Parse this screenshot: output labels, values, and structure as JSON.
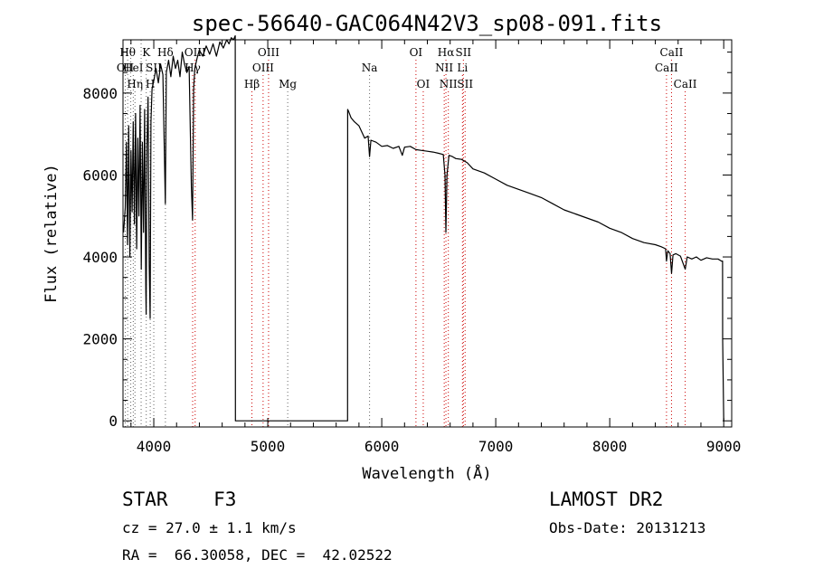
{
  "chart_data": {
    "type": "line",
    "title": "spec-56640-GAC064N42V3_sp08-091.fits",
    "xlabel": "Wavelength (Å)",
    "ylabel": "Flux (relative)",
    "xlim": [
      3730,
      9070
    ],
    "ylim": [
      -150,
      9300
    ],
    "xticks": [
      4000,
      5000,
      6000,
      7000,
      8000,
      9000
    ],
    "yticks": [
      0,
      2000,
      4000,
      6000,
      8000
    ],
    "grid": false,
    "series": [
      {
        "color": "#000000",
        "x": [
          3735,
          3750,
          3760,
          3770,
          3780,
          3790,
          3800,
          3810,
          3820,
          3830,
          3840,
          3850,
          3860,
          3870,
          3880,
          3890,
          3900,
          3910,
          3920,
          3930,
          3933,
          3940,
          3950,
          3960,
          3968,
          3975,
          3985,
          4000,
          4020,
          4040,
          4060,
          4080,
          4101,
          4110,
          4130,
          4150,
          4170,
          4190,
          4210,
          4230,
          4250,
          4270,
          4290,
          4310,
          4330,
          4340,
          4350,
          4360,
          4380,
          4400,
          4430,
          4460,
          4490,
          4520,
          4550,
          4580,
          4610,
          4640,
          4660,
          4680,
          4700,
          4715,
          4716,
          4720,
          5700,
          5701,
          5710,
          5730,
          5760,
          5800,
          5850,
          5880,
          5893,
          5905,
          5950,
          6000,
          6050,
          6100,
          6150,
          6180,
          6200,
          6250,
          6300,
          6350,
          6400,
          6450,
          6500,
          6540,
          6555,
          6563,
          6572,
          6590,
          6620,
          6650,
          6700,
          6750,
          6800,
          6900,
          7000,
          7100,
          7200,
          7300,
          7400,
          7500,
          7600,
          7700,
          7800,
          7900,
          8000,
          8100,
          8200,
          8300,
          8400,
          8450,
          8490,
          8498,
          8510,
          8530,
          8542,
          8555,
          8580,
          8620,
          8662,
          8680,
          8720,
          8760,
          8800,
          8850,
          8900,
          8950,
          8980,
          8990,
          8991,
          9000
        ],
        "y": [
          4600,
          5200,
          6800,
          4300,
          7200,
          4000,
          6600,
          5100,
          7300,
          4800,
          7500,
          4200,
          6900,
          5000,
          7700,
          3700,
          6800,
          4600,
          7600,
          3200,
          2600,
          6700,
          7900,
          3800,
          2500,
          7300,
          8100,
          8300,
          8600,
          8250,
          8700,
          8450,
          5300,
          8500,
          8800,
          8400,
          8900,
          8600,
          8800,
          8400,
          9000,
          8700,
          8500,
          8650,
          5700,
          4900,
          8100,
          8600,
          8850,
          9050,
          8900,
          9150,
          8950,
          9200,
          8900,
          9250,
          9100,
          9300,
          9200,
          9350,
          9300,
          9400,
          0,
          0,
          0,
          7600,
          7550,
          7400,
          7300,
          7200,
          6900,
          6950,
          6450,
          6850,
          6800,
          6700,
          6720,
          6650,
          6700,
          6480,
          6680,
          6700,
          6620,
          6600,
          6580,
          6560,
          6530,
          6500,
          6000,
          4600,
          6000,
          6480,
          6450,
          6400,
          6380,
          6300,
          6150,
          6050,
          5900,
          5750,
          5650,
          5550,
          5450,
          5300,
          5150,
          5050,
          4950,
          4850,
          4700,
          4600,
          4450,
          4350,
          4300,
          4250,
          4200,
          3900,
          4150,
          4080,
          3600,
          4050,
          4080,
          4020,
          3700,
          4000,
          3950,
          4000,
          3920,
          3980,
          3950,
          3950,
          3900,
          3900,
          2000,
          0
        ]
      }
    ],
    "lines": [
      {
        "w": 3750,
        "label": "OII",
        "row": 1,
        "color": "#666666"
      },
      {
        "w": 3771,
        "label": "Hθ",
        "row": 0,
        "color": "#666666"
      },
      {
        "w": 3798,
        "label": "",
        "row": 0,
        "color": "#666666"
      },
      {
        "w": 3820,
        "label": "HeI",
        "row": 1,
        "color": "#666666"
      },
      {
        "w": 3835,
        "label": "Hη",
        "row": 2,
        "color": "#666666"
      },
      {
        "w": 3889,
        "label": "",
        "row": 0,
        "color": "#666666"
      },
      {
        "w": 3934,
        "label": "K",
        "row": 0,
        "color": "#666666"
      },
      {
        "w": 3969,
        "label": "H",
        "row": 2,
        "color": "#666666"
      },
      {
        "w": 4000,
        "label": "SII",
        "row": 1,
        "color": "#666666"
      },
      {
        "w": 4102,
        "label": "Hδ",
        "row": 0,
        "color": "#666666"
      },
      {
        "w": 4341,
        "label": "Hγ",
        "row": 1,
        "color": "#cc0000"
      },
      {
        "w": 4363,
        "label": "OIII",
        "row": 0,
        "color": "#cc0000"
      },
      {
        "w": 4861,
        "label": "Hβ",
        "row": 2,
        "color": "#cc0000"
      },
      {
        "w": 4959,
        "label": "OIII",
        "row": 1,
        "color": "#cc0000"
      },
      {
        "w": 5007,
        "label": "OIII",
        "row": 0,
        "color": "#cc0000"
      },
      {
        "w": 5175,
        "label": "Mg",
        "row": 2,
        "color": "#666666"
      },
      {
        "w": 5893,
        "label": "Na",
        "row": 1,
        "color": "#666666"
      },
      {
        "w": 6300,
        "label": "OI",
        "row": 0,
        "color": "#cc0000"
      },
      {
        "w": 6364,
        "label": "OI",
        "row": 2,
        "color": "#cc0000"
      },
      {
        "w": 6548,
        "label": "NII",
        "row": 1,
        "color": "#cc0000"
      },
      {
        "w": 6563,
        "label": "Hα",
        "row": 0,
        "color": "#cc0000"
      },
      {
        "w": 6584,
        "label": "NII",
        "row": 2,
        "color": "#cc0000"
      },
      {
        "w": 6708,
        "label": "Li",
        "row": 1,
        "color": "#cc0000"
      },
      {
        "w": 6716,
        "label": "SII",
        "row": 0,
        "color": "#cc0000"
      },
      {
        "w": 6731,
        "label": "SII",
        "row": 2,
        "color": "#cc0000"
      },
      {
        "w": 8498,
        "label": "CaII",
        "row": 1,
        "color": "#cc0000"
      },
      {
        "w": 8542,
        "label": "CaII",
        "row": 0,
        "color": "#cc0000"
      },
      {
        "w": 8662,
        "label": "CaII",
        "row": 2,
        "color": "#cc0000"
      }
    ]
  },
  "info": {
    "class_line": "STAR    F3",
    "survey": "LAMOST DR2",
    "cz": "cz = 27.0 ± 1.1 km/s",
    "obs_date": "Obs-Date: 20131213",
    "radec": "RA =  66.30058, DEC =  42.02522"
  }
}
